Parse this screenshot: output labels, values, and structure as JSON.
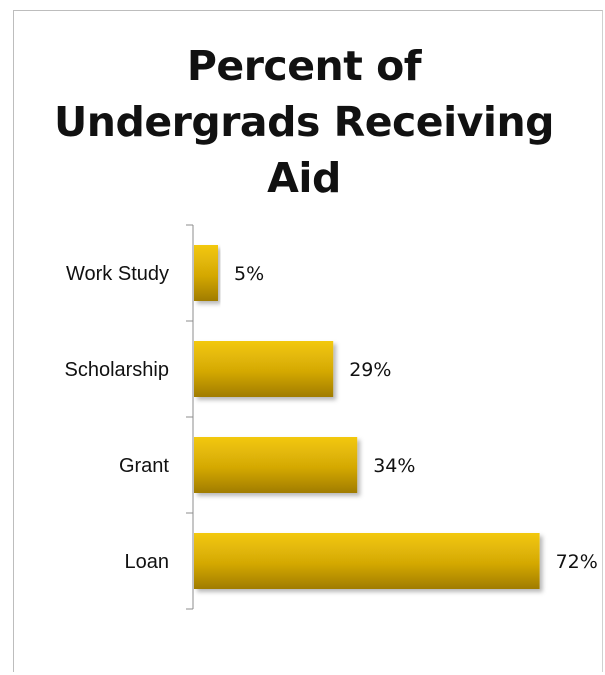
{
  "chart_data": {
    "type": "bar",
    "orientation": "horizontal",
    "title": "Percent  of Undergrads Receiving Aid",
    "title_lines": [
      "Percent  of",
      "Undergrads Receiving",
      "Aid"
    ],
    "categories": [
      "Work Study",
      "Scholarship",
      "Grant",
      "Loan"
    ],
    "values": [
      5,
      29,
      34,
      72
    ],
    "value_labels": [
      "5%",
      "29%",
      "34%",
      "72%"
    ],
    "xlim": [
      0,
      100
    ],
    "grid": false,
    "legend": "none",
    "bar_color": "#d4a806",
    "bar_color_dark": "#a07c02"
  }
}
